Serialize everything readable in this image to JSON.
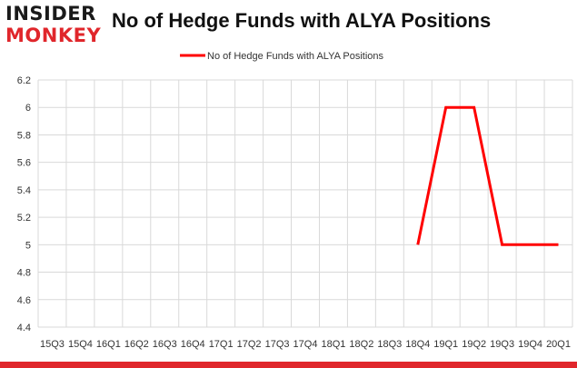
{
  "brand": {
    "line1": "INSIDER",
    "line2": "MONKEY",
    "accent_color": "#e0262b"
  },
  "chart_data": {
    "type": "line",
    "title": "No of Hedge Funds with ALYA Positions",
    "xlabel": "",
    "ylabel": "",
    "categories": [
      "15Q3",
      "15Q4",
      "16Q1",
      "16Q2",
      "16Q3",
      "16Q4",
      "17Q1",
      "17Q2",
      "17Q3",
      "17Q4",
      "18Q1",
      "18Q2",
      "18Q3",
      "18Q4",
      "19Q1",
      "19Q2",
      "19Q3",
      "19Q4",
      "20Q1"
    ],
    "series": [
      {
        "name": "No of Hedge Funds with ALYA Positions",
        "color": "#ff0000",
        "values": [
          null,
          null,
          null,
          null,
          null,
          null,
          null,
          null,
          null,
          null,
          null,
          null,
          null,
          5,
          6,
          6,
          5,
          5,
          5
        ]
      }
    ],
    "ylim": [
      4.4,
      6.2
    ],
    "yticks": [
      "4.4",
      "4.6",
      "4.8",
      "5",
      "5.2",
      "5.4",
      "5.6",
      "5.8",
      "6",
      "6.2"
    ],
    "grid": true,
    "legend_position": "top-center"
  }
}
